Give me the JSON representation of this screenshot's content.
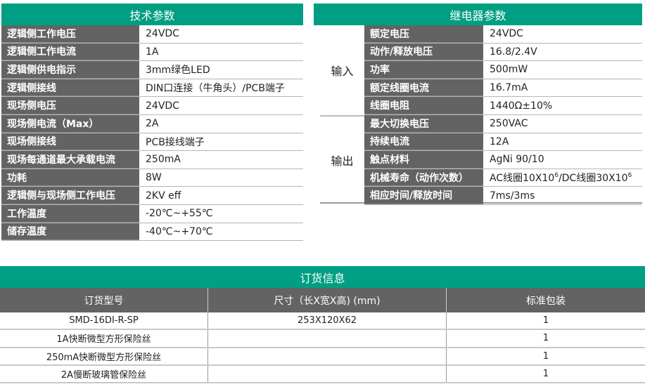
{
  "tech": {
    "title": "技术参数",
    "rows": [
      {
        "label": "逻辑侧工作电压",
        "value": "24VDC"
      },
      {
        "label": "逻辑侧工作电流",
        "value": "1A"
      },
      {
        "label": "逻辑侧供电指示",
        "value": "3mm绿色LED"
      },
      {
        "label": "逻辑侧接线",
        "value": "DIN口连接（牛角头）/PCB端子"
      },
      {
        "label": "现场侧电压",
        "value": "24VDC"
      },
      {
        "label": "现场侧电流（Max）",
        "value": "2A"
      },
      {
        "label": "现场侧接线",
        "value": "PCB接线端子"
      },
      {
        "label": "现场每通道最大承载电流",
        "value": "250mA"
      },
      {
        "label": "功耗",
        "value": "8W"
      },
      {
        "label": "逻辑侧与现场侧工作电压",
        "value": "2KV eff"
      },
      {
        "label": "工作温度",
        "value": "-20℃~+55℃"
      },
      {
        "label": "储存温度",
        "value": "-40℃~+70℃"
      }
    ]
  },
  "relay": {
    "title": "继电器参数",
    "input_label": "输入",
    "output_label": "输出",
    "input_rows": [
      {
        "label": "额定电压",
        "value": "24VDC"
      },
      {
        "label": "动作/释放电压",
        "value": "16.8/2.4V"
      },
      {
        "label": "功率",
        "value": "500mW"
      },
      {
        "label": "额定线圈电流",
        "value": "16.7mA"
      },
      {
        "label": "线圈电阻",
        "value": "1440Ω±10%"
      }
    ],
    "output_rows": [
      {
        "label": "最大切换电压",
        "value": "250VAC"
      },
      {
        "label": "持续电流",
        "value": "12A"
      },
      {
        "label": "触点材料",
        "value": "AgNi 90/10"
      },
      {
        "label": "机械寿命（动作次数）",
        "value": "",
        "life": {
          "a": "AC线圈10X10",
          "exp": "6",
          "b": "/DC线圈30X10",
          "exp2": "6"
        }
      },
      {
        "label": "相应时间/释放时间",
        "value": "7ms/3ms"
      }
    ]
  },
  "order": {
    "title": "订货信息",
    "headers": [
      "订货型号",
      "尺寸（长X宽X高) (mm)",
      "标准包装"
    ],
    "rows": [
      [
        "SMD-16DI-R-SP",
        "253X120X62",
        "1"
      ],
      [
        "1A快断微型方形保险丝",
        "",
        "1"
      ],
      [
        "250mA快断微型方形保险丝",
        "",
        "1"
      ],
      [
        "2A慢断玻璃管保险丝",
        "",
        "1"
      ]
    ]
  },
  "colors": {
    "accent": "#009e82",
    "label_bg": "#636363"
  }
}
